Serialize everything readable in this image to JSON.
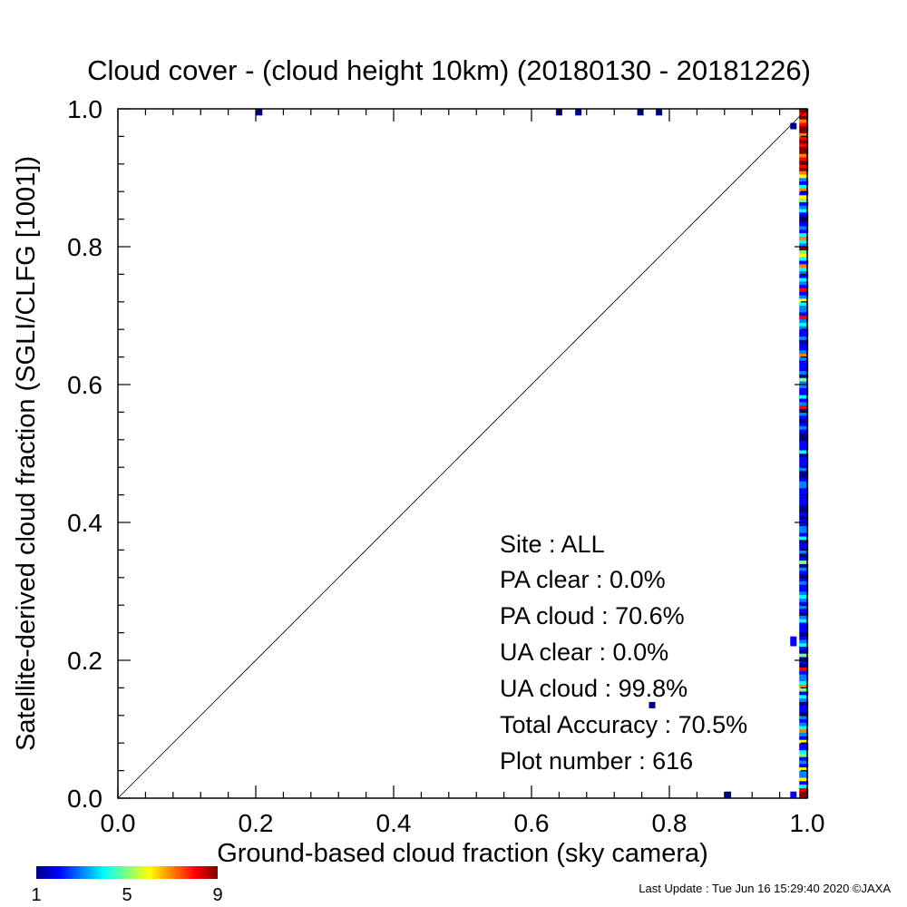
{
  "chart_data": {
    "type": "scatter",
    "title": "Cloud cover - (cloud height 10km)  (20180130 - 20181226)",
    "xlabel": "Ground-based cloud fraction (sky camera)",
    "ylabel": "Satellite-derived cloud fraction (SGLI/CLFG [1001])",
    "xlim": [
      0,
      1
    ],
    "ylim": [
      0,
      1
    ],
    "x_ticks": [
      "0.0",
      "0.2",
      "0.4",
      "0.6",
      "0.8",
      "1.0"
    ],
    "y_ticks": [
      "0.0",
      "0.2",
      "0.4",
      "0.6",
      "0.8",
      "1.0"
    ],
    "grid": false,
    "reference_line": "y = x",
    "colorbar": {
      "min_label": "1",
      "mid_label": "5",
      "max_label": "9",
      "colors": [
        "#00007f",
        "#0000ff",
        "#007fff",
        "#00ffff",
        "#7fff7f",
        "#ffff00",
        "#ff7f00",
        "#ff0000",
        "#7f0000"
      ]
    },
    "stats": {
      "site": "Site : ALL",
      "pa_clear": "PA clear :   0.0%",
      "pa_cloud": "PA cloud :  70.6%",
      "ua_clear": "UA clear :   0.0%",
      "ua_cloud": "UA cloud :  99.8%",
      "total_accuracy": "Total Accuracy :  70.5%",
      "plot_number": "Plot number :       616"
    },
    "points": [
      {
        "x": 0.205,
        "y": 0.995,
        "count": 1
      },
      {
        "x": 0.64,
        "y": 0.995,
        "count": 1
      },
      {
        "x": 0.668,
        "y": 0.995,
        "count": 1
      },
      {
        "x": 0.758,
        "y": 0.995,
        "count": 1
      },
      {
        "x": 0.785,
        "y": 0.995,
        "count": 1
      },
      {
        "x": 0.98,
        "y": 0.975,
        "count": 1
      },
      {
        "x": 0.775,
        "y": 0.135,
        "count": 1
      },
      {
        "x": 0.885,
        "y": 0.005,
        "count": 1
      },
      {
        "x": 0.98,
        "y": 0.005,
        "count": 2
      },
      {
        "x": 0.98,
        "y": 0.23,
        "count": 2
      },
      {
        "x": 0.98,
        "y": 0.225,
        "count": 2
      }
    ],
    "column_x": 0.995,
    "column_counts": [
      9,
      9,
      8,
      4,
      2,
      6,
      3,
      3,
      6,
      2,
      3,
      2,
      5,
      4,
      2,
      2,
      6,
      2,
      3,
      7,
      4,
      3,
      2,
      3,
      1,
      2,
      2,
      1,
      3,
      4,
      2,
      5,
      7,
      4,
      3,
      3,
      2,
      8,
      1,
      2,
      1,
      5,
      1,
      2,
      4,
      3,
      2,
      1,
      2,
      2,
      2,
      4,
      3,
      1,
      2,
      3,
      2,
      3,
      4,
      3,
      2,
      2,
      3,
      2,
      1,
      2,
      3,
      1,
      5,
      2,
      1,
      3,
      2,
      2,
      1,
      4,
      2,
      3,
      3,
      2,
      2,
      1,
      2,
      1,
      1,
      2,
      2,
      2,
      2,
      2,
      3,
      3,
      2,
      1,
      1,
      3,
      2,
      2,
      2,
      1,
      4,
      2,
      2,
      2,
      1,
      1,
      2,
      3,
      2,
      1,
      2,
      3,
      1,
      8,
      3,
      2,
      4,
      2,
      2,
      3,
      3,
      5,
      1,
      3,
      2,
      2,
      2,
      3,
      7,
      3,
      2,
      2,
      1,
      3,
      2,
      2,
      3,
      4,
      3,
      8,
      2,
      3,
      3,
      4,
      6,
      3,
      2,
      8,
      2,
      3,
      4,
      2,
      3,
      4,
      7,
      2,
      4,
      6,
      5,
      9,
      3,
      4,
      7,
      4,
      2,
      3,
      2,
      1,
      1,
      2,
      4,
      3,
      2,
      5,
      6,
      2,
      7,
      4,
      2,
      3,
      6,
      7,
      9,
      8,
      9,
      8,
      7,
      9,
      9,
      8,
      9,
      8,
      7,
      9,
      9,
      8,
      7,
      9,
      8,
      9
    ]
  },
  "footer": {
    "last_update": "Last Update : Tue Jun 16 15:29:40 2020  ©JAXA"
  }
}
